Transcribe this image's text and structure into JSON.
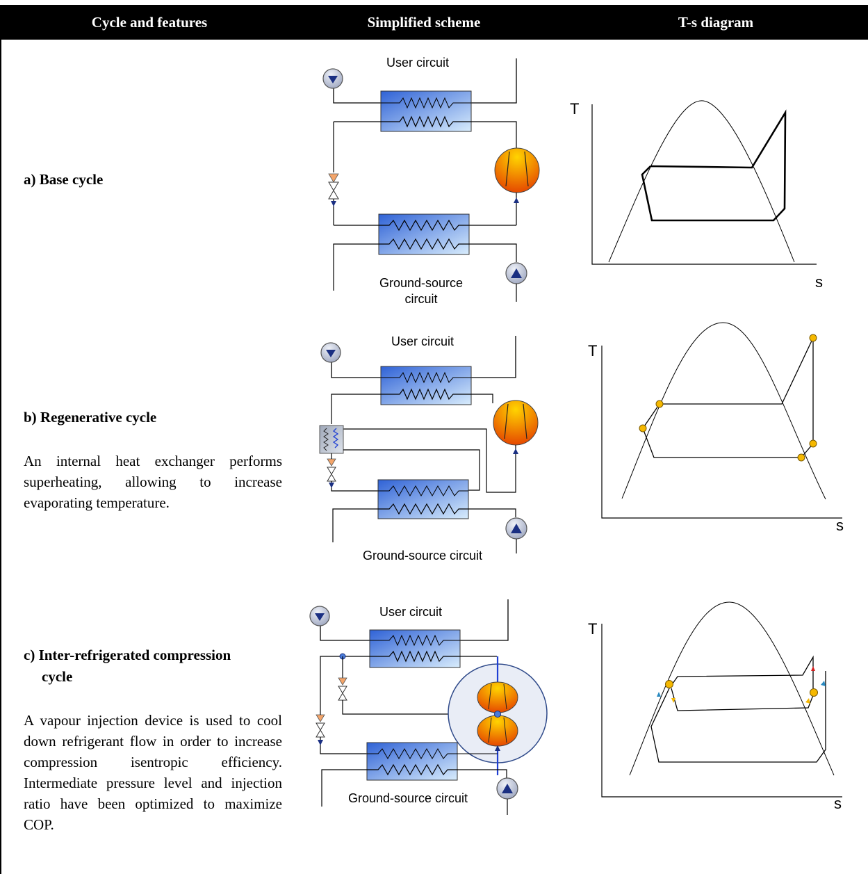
{
  "header": {
    "col1": "Cycle and features",
    "col2": "Simplified scheme",
    "col3": "T-s diagram"
  },
  "rows": [
    {
      "title": "a) Base cycle",
      "description": "",
      "user_circuit": "User circuit",
      "ground_circuit_line1": "Ground-source",
      "ground_circuit_line2": "circuit"
    },
    {
      "title": "b) Regenerative cycle",
      "description": "An internal heat exchanger performs superheating, allowing to increase evaporating temperature.",
      "user_circuit": "User circuit",
      "ground_circuit": "Ground-source circuit"
    },
    {
      "title_line1": "c) Inter-refrigerated compression",
      "title_line2": "cycle",
      "description": "A vapour injection device is used to cool down refrigerant flow in order to increase compression isentropic efficiency. Intermediate pressure level and injection ratio have been optimized to maximize COP.",
      "user_circuit": "User circuit",
      "ground_circuit": "Ground-source circuit"
    }
  ],
  "axes": {
    "y": "T",
    "x": "s"
  },
  "colors": {
    "header_bg": "#000000",
    "hx_dark": "#3b6fd8",
    "hx_light": "#cfe6fb",
    "compressor_top": "#f7d000",
    "compressor_bottom": "#e53a00",
    "state_point": "#f5b800",
    "pump": "#b8c0d4"
  }
}
